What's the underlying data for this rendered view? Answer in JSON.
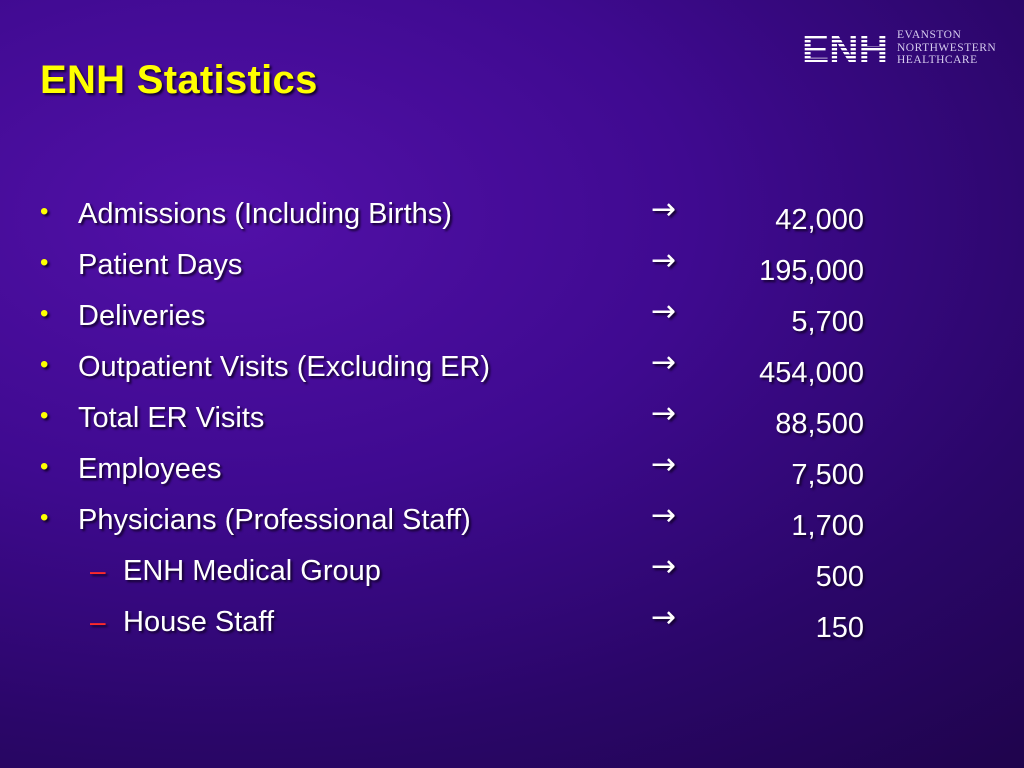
{
  "slide": {
    "title": "ENH Statistics",
    "logo": {
      "mark": "ENH",
      "lines": [
        "EVANSTON",
        "NORTHWESTERN",
        "HEALTHCARE"
      ]
    },
    "bullet_glyph": "•",
    "sub_bullet_glyph": "–",
    "arrow_glyph": "→",
    "items": [
      {
        "label": "Admissions (Including Births)",
        "value": "42,000",
        "level": 1
      },
      {
        "label": "Patient Days",
        "value": "195,000",
        "level": 1
      },
      {
        "label": "Deliveries",
        "value": "5,700",
        "level": 1
      },
      {
        "label": "Outpatient Visits (Excluding ER)",
        "value": "454,000",
        "level": 1
      },
      {
        "label": "Total ER Visits",
        "value": "88,500",
        "level": 1
      },
      {
        "label": "Employees",
        "value": "7,500",
        "level": 1
      },
      {
        "label": "Physicians (Professional Staff)",
        "value": "1,700",
        "level": 1
      },
      {
        "label": "ENH Medical Group",
        "value": "500",
        "level": 2
      },
      {
        "label": "House Staff",
        "value": "150",
        "level": 2
      }
    ]
  },
  "colors": {
    "title": "#ffff00",
    "bullet": "#ffff00",
    "sub_bullet": "#ff2a2a",
    "text": "#ffffff",
    "background": "#3f0a90"
  }
}
